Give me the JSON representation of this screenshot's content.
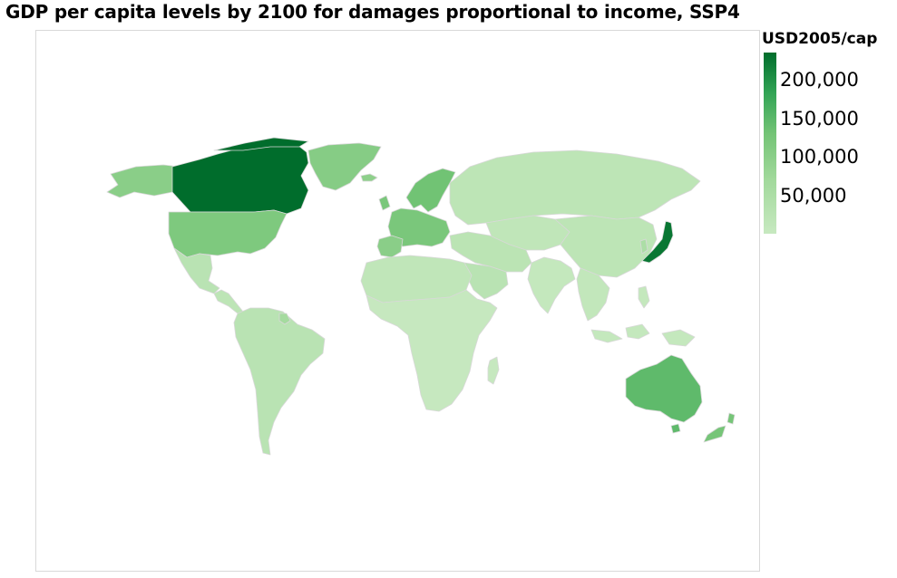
{
  "title": "GDP per capita levels by 2100 for damages proportional to income, SSP4",
  "legend": {
    "title": "USD2005/cap",
    "ticks": [
      "200,000",
      "150,000",
      "100,000",
      "50,000"
    ],
    "min_value": 10000,
    "max_value": 235000,
    "color_min": "#c7e9c0",
    "color_max": "#006d2c"
  },
  "map": {
    "type": "choropleth",
    "projection": "equirectangular world",
    "border_color": "#d8d8d8",
    "regions": [
      {
        "name": "Canada",
        "value": 235000
      },
      {
        "name": "Japan",
        "value": 225000
      },
      {
        "name": "Australia",
        "value": 140000
      },
      {
        "name": "New Zealand",
        "value": 120000
      },
      {
        "name": "United States",
        "value": 110000
      },
      {
        "name": "Greenland",
        "value": 100000
      },
      {
        "name": "Alaska",
        "value": 95000
      },
      {
        "name": "Scandinavia",
        "value": 125000
      },
      {
        "name": "Western Europe",
        "value": 115000
      },
      {
        "name": "Iberia",
        "value": 95000
      },
      {
        "name": "Iceland",
        "value": 90000
      },
      {
        "name": "Russia",
        "value": 25000
      },
      {
        "name": "Central Asia",
        "value": 20000
      },
      {
        "name": "China",
        "value": 25000
      },
      {
        "name": "South Korea",
        "value": 50000
      },
      {
        "name": "Middle East",
        "value": 28000
      },
      {
        "name": "Arabian Peninsula",
        "value": 30000
      },
      {
        "name": "India",
        "value": 15000
      },
      {
        "name": "Southeast Asia",
        "value": 18000
      },
      {
        "name": "Indonesia",
        "value": 15000
      },
      {
        "name": "Philippines",
        "value": 15000
      },
      {
        "name": "North Africa",
        "value": 20000
      },
      {
        "name": "Sub-Saharan Africa",
        "value": 12000
      },
      {
        "name": "Madagascar",
        "value": 12000
      },
      {
        "name": "Mexico",
        "value": 30000
      },
      {
        "name": "Central America",
        "value": 25000
      },
      {
        "name": "South America",
        "value": 30000
      },
      {
        "name": "Guyana",
        "value": 60000
      }
    ]
  }
}
